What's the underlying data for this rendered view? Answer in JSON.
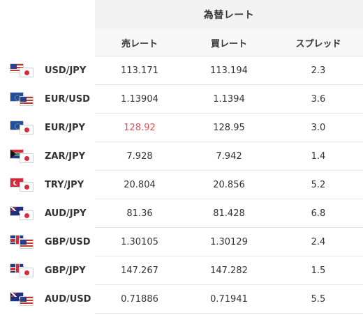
{
  "table": {
    "title": "為替レート",
    "columns": {
      "sell": "売レート",
      "buy": "買レート",
      "spread": "スプレッド"
    },
    "rows": [
      {
        "pair": "USD/JPY",
        "flag_a": "us-flag-icon",
        "flag_b": "japan-flag-icon",
        "sell": "113.171",
        "buy": "113.194",
        "spread": "2.3",
        "sell_highlight": false
      },
      {
        "pair": "EUR/USD",
        "flag_a": "eu-flag-icon",
        "flag_b": "us-flag-icon",
        "sell": "1.13904",
        "buy": "1.1394",
        "spread": "3.6",
        "sell_highlight": false
      },
      {
        "pair": "EUR/JPY",
        "flag_a": "eu-flag-icon",
        "flag_b": "japan-flag-icon",
        "sell": "128.92",
        "buy": "128.95",
        "spread": "3.0",
        "sell_highlight": true
      },
      {
        "pair": "ZAR/JPY",
        "flag_a": "south-africa-flag-icon",
        "flag_b": "japan-flag-icon",
        "sell": "7.928",
        "buy": "7.942",
        "spread": "1.4",
        "sell_highlight": false
      },
      {
        "pair": "TRY/JPY",
        "flag_a": "turkey-flag-icon",
        "flag_b": "japan-flag-icon",
        "sell": "20.804",
        "buy": "20.856",
        "spread": "5.2",
        "sell_highlight": false
      },
      {
        "pair": "AUD/JPY",
        "flag_a": "australia-flag-icon",
        "flag_b": "japan-flag-icon",
        "sell": "81.36",
        "buy": "81.428",
        "spread": "6.8",
        "sell_highlight": false
      },
      {
        "pair": "GBP/USD",
        "flag_a": "uk-flag-icon",
        "flag_b": "us-flag-icon",
        "sell": "1.30105",
        "buy": "1.30129",
        "spread": "2.4",
        "sell_highlight": false
      },
      {
        "pair": "GBP/JPY",
        "flag_a": "uk-flag-icon",
        "flag_b": "japan-flag-icon",
        "sell": "147.267",
        "buy": "147.282",
        "spread": "1.5",
        "sell_highlight": false
      },
      {
        "pair": "AUD/USD",
        "flag_a": "australia-flag-icon",
        "flag_b": "us-flag-icon",
        "sell": "0.71886",
        "buy": "0.71941",
        "spread": "5.5",
        "sell_highlight": false
      }
    ]
  },
  "colors": {
    "header_bg": "#f2f2f2",
    "text": "#333333",
    "highlight_red": "#d9534f",
    "row_border": "#e6e6e6"
  }
}
